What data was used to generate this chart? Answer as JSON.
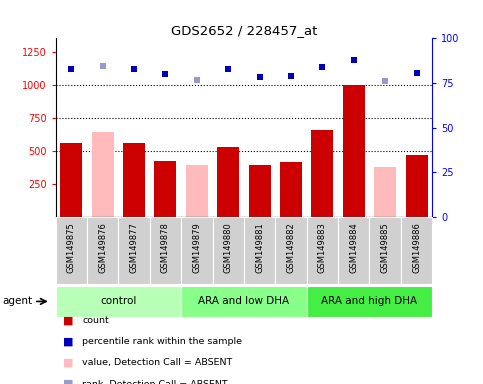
{
  "title": "GDS2652 / 228457_at",
  "samples": [
    "GSM149875",
    "GSM149876",
    "GSM149877",
    "GSM149878",
    "GSM149879",
    "GSM149880",
    "GSM149881",
    "GSM149882",
    "GSM149883",
    "GSM149884",
    "GSM149885",
    "GSM149886"
  ],
  "count_values": [
    560,
    0,
    560,
    420,
    0,
    530,
    390,
    415,
    660,
    1000,
    0,
    465
  ],
  "count_absent": [
    0,
    640,
    0,
    0,
    390,
    0,
    0,
    0,
    0,
    0,
    375,
    0
  ],
  "rank_values": [
    1120,
    0,
    1120,
    1080,
    0,
    1120,
    1060,
    1065,
    1130,
    1190,
    0,
    1090
  ],
  "rank_absent": [
    0,
    1140,
    0,
    0,
    1035,
    0,
    0,
    0,
    0,
    0,
    1025,
    0
  ],
  "groups": [
    {
      "label": "control",
      "color": "#b8ffb8",
      "start": 0,
      "end": 4
    },
    {
      "label": "ARA and low DHA",
      "color": "#88ff88",
      "start": 4,
      "end": 8
    },
    {
      "label": "ARA and high DHA",
      "color": "#44ee44",
      "start": 8,
      "end": 12
    }
  ],
  "ylim_left": [
    0,
    1350
  ],
  "yticks_left": [
    250,
    500,
    750,
    1000,
    1250
  ],
  "yticks_right": [
    0,
    25,
    50,
    75,
    100
  ],
  "hlines": [
    500,
    750,
    1000
  ],
  "bar_color_present": "#cc0000",
  "bar_color_absent": "#ffbbbb",
  "rank_color_present": "#0000bb",
  "rank_color_absent": "#9999cc",
  "label_bg_color": "#d0d0d0",
  "legend_items": [
    {
      "color": "#cc0000",
      "label": "count"
    },
    {
      "color": "#0000bb",
      "label": "percentile rank within the sample"
    },
    {
      "color": "#ffbbbb",
      "label": "value, Detection Call = ABSENT"
    },
    {
      "color": "#9999cc",
      "label": "rank, Detection Call = ABSENT"
    }
  ]
}
